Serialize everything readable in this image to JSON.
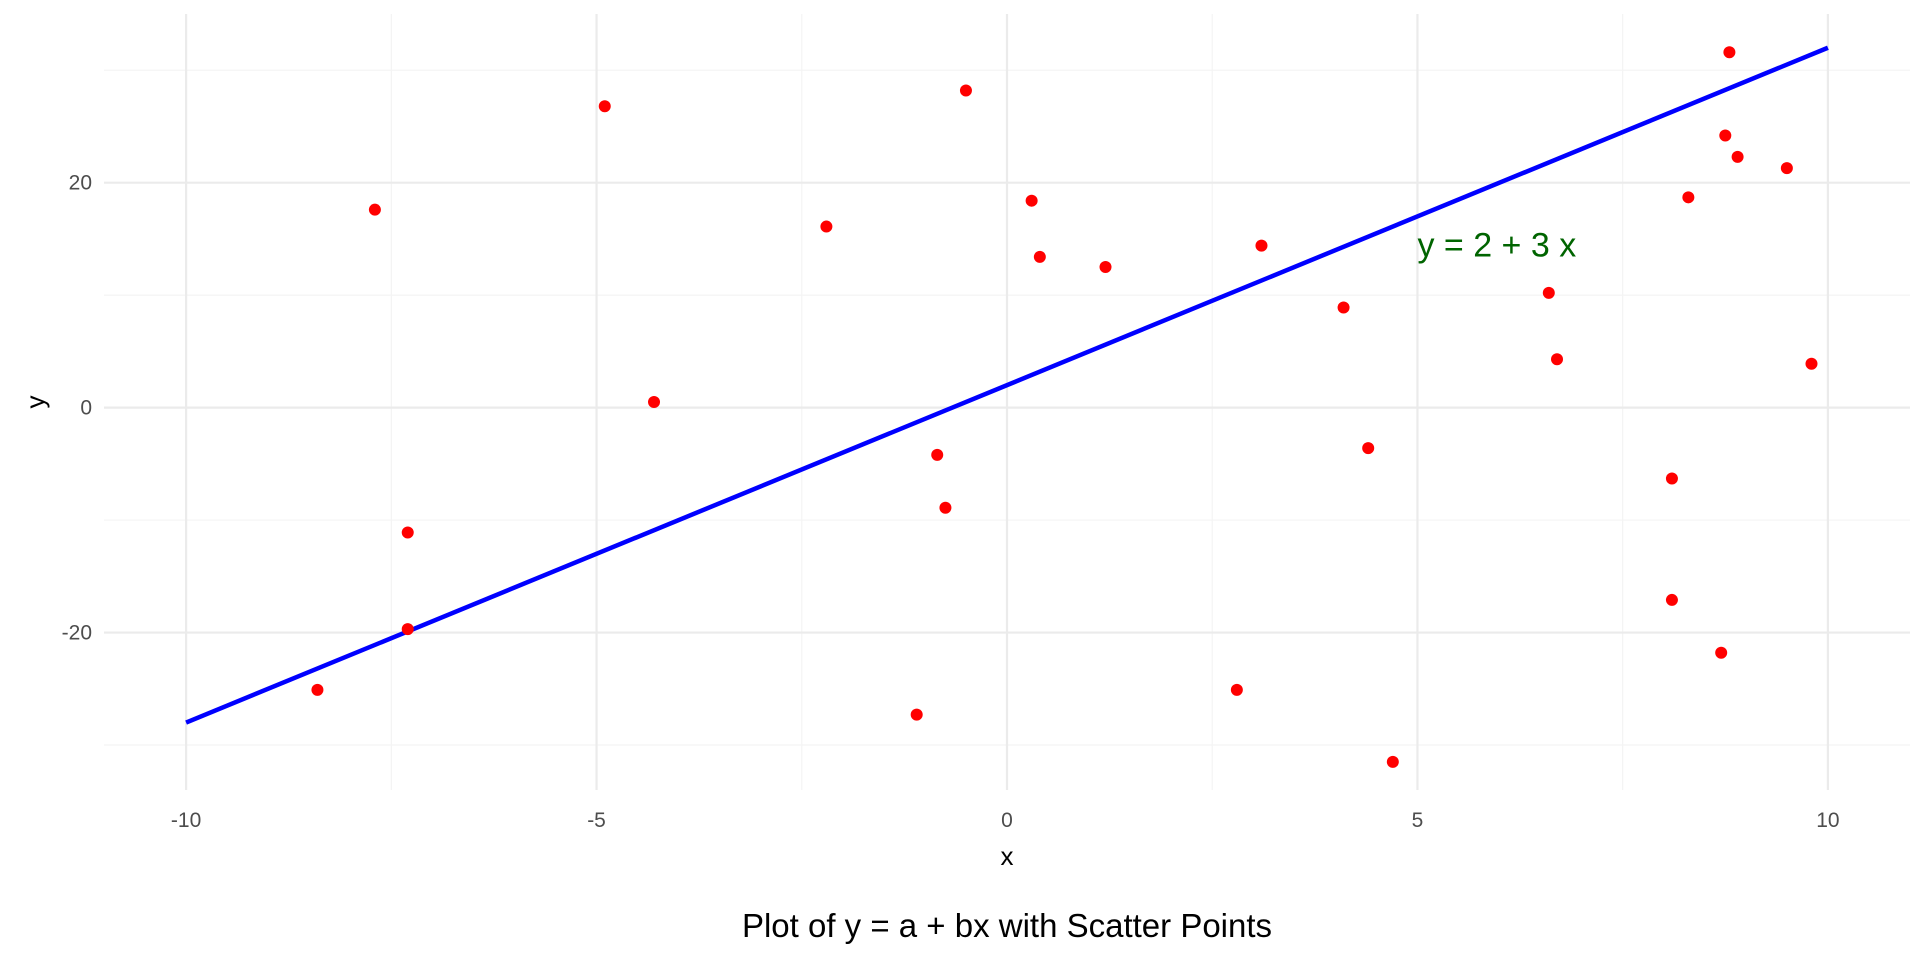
{
  "chart_data": {
    "type": "scatter",
    "caption": "Plot of y = a + bx with Scatter Points",
    "xlabel": "x",
    "ylabel": "y",
    "xlim": [
      -11,
      11
    ],
    "ylim": [
      -34,
      35
    ],
    "x_ticks": [
      -10,
      -5,
      0,
      5,
      10
    ],
    "x_tick_labels": [
      "-10",
      "-5",
      "0",
      "5",
      "10"
    ],
    "y_ticks": [
      -20,
      0,
      20
    ],
    "y_tick_labels": [
      "-20",
      "0",
      "20"
    ],
    "grid": true,
    "legend": "none",
    "line": {
      "intercept": 2,
      "slope": 3,
      "x_range": [
        -10,
        10
      ],
      "color": "#0000ff"
    },
    "annotation": {
      "text": "y = 2 + 3 x",
      "x": 5,
      "y": 14.5,
      "color": "#006400"
    },
    "points_color": "#ff0000",
    "points": [
      {
        "x": -8.4,
        "y": -25.1
      },
      {
        "x": -7.7,
        "y": 17.6
      },
      {
        "x": -7.3,
        "y": -11.1
      },
      {
        "x": -7.3,
        "y": -19.7
      },
      {
        "x": -4.9,
        "y": 26.8
      },
      {
        "x": -4.3,
        "y": 0.5
      },
      {
        "x": -2.2,
        "y": 16.1
      },
      {
        "x": -1.1,
        "y": -27.3
      },
      {
        "x": -0.85,
        "y": -4.2
      },
      {
        "x": -0.75,
        "y": -8.9
      },
      {
        "x": -0.5,
        "y": 28.2
      },
      {
        "x": 0.3,
        "y": 18.4
      },
      {
        "x": 0.4,
        "y": 13.4
      },
      {
        "x": 1.2,
        "y": 12.5
      },
      {
        "x": 2.8,
        "y": -25.1
      },
      {
        "x": 3.1,
        "y": 14.4
      },
      {
        "x": 4.1,
        "y": 8.9
      },
      {
        "x": 4.4,
        "y": -3.6
      },
      {
        "x": 4.7,
        "y": -31.5
      },
      {
        "x": 6.6,
        "y": 10.2
      },
      {
        "x": 6.7,
        "y": 4.3
      },
      {
        "x": 8.1,
        "y": -6.3
      },
      {
        "x": 8.1,
        "y": -17.1
      },
      {
        "x": 8.3,
        "y": 18.7
      },
      {
        "x": 8.7,
        "y": -21.8
      },
      {
        "x": 8.75,
        "y": 24.2
      },
      {
        "x": 8.8,
        "y": 31.6
      },
      {
        "x": 8.9,
        "y": 22.3
      },
      {
        "x": 9.5,
        "y": 21.3
      },
      {
        "x": 9.8,
        "y": 3.9
      }
    ]
  }
}
